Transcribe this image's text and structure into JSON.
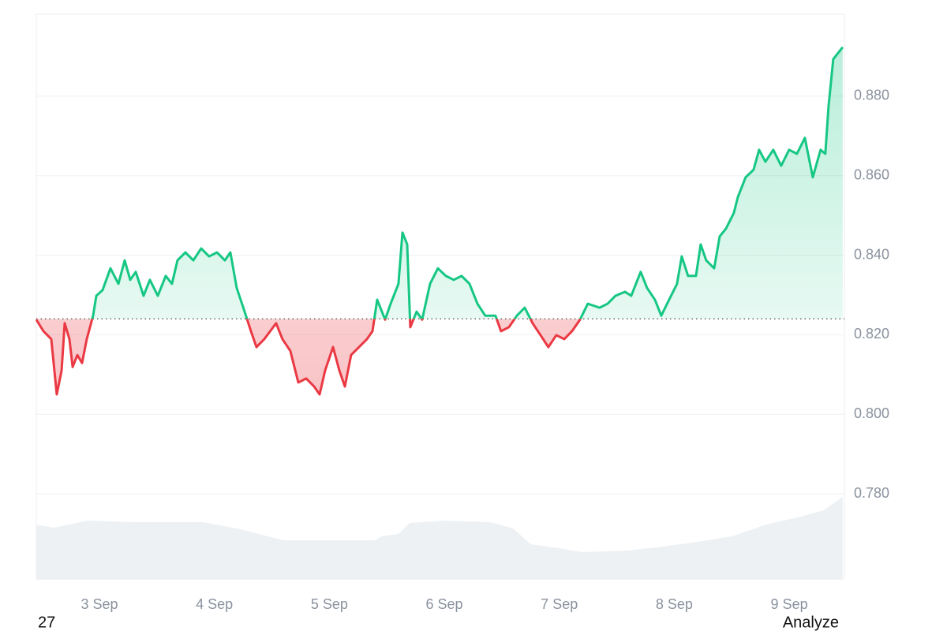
{
  "chart_data": {
    "type": "line",
    "x": [
      2.451,
      2.513,
      2.581,
      2.629,
      2.671,
      2.698,
      2.739,
      2.767,
      2.808,
      2.849,
      2.89,
      2.945,
      2.973,
      3.027,
      3.096,
      3.165,
      3.22,
      3.268,
      3.316,
      3.384,
      3.439,
      3.508,
      3.577,
      3.631,
      3.679,
      3.748,
      3.817,
      3.885,
      3.954,
      4.023,
      4.091,
      4.139,
      4.194,
      4.263,
      4.318,
      4.366,
      4.434,
      4.537,
      4.592,
      4.661,
      4.73,
      4.798,
      4.867,
      4.915,
      4.963,
      5.032,
      5.087,
      5.135,
      5.189,
      5.258,
      5.327,
      5.375,
      5.416,
      5.485,
      5.533,
      5.601,
      5.636,
      5.677,
      5.704,
      5.759,
      5.807,
      5.876,
      5.944,
      6.013,
      6.082,
      6.15,
      6.219,
      6.288,
      6.356,
      6.445,
      6.493,
      6.562,
      6.631,
      6.699,
      6.768,
      6.837,
      6.905,
      6.974,
      7.043,
      7.111,
      7.18,
      7.248,
      7.351,
      7.42,
      7.489,
      7.571,
      7.626,
      7.708,
      7.763,
      7.832,
      7.887,
      7.955,
      8.024,
      8.065,
      8.12,
      8.189,
      8.23,
      8.278,
      8.347,
      8.395,
      8.45,
      8.518,
      8.553,
      8.621,
      8.69,
      8.738,
      8.793,
      8.861,
      8.93,
      8.999,
      9.067,
      9.136,
      9.205,
      9.273,
      9.314,
      9.342,
      9.383,
      9.465
    ],
    "values": [
      0.8238,
      0.8209,
      0.8189,
      0.805,
      0.811,
      0.8229,
      0.8189,
      0.8119,
      0.8149,
      0.8129,
      0.8189,
      0.8248,
      0.8298,
      0.8312,
      0.8367,
      0.8328,
      0.8387,
      0.8338,
      0.8358,
      0.8298,
      0.8338,
      0.8298,
      0.8348,
      0.8328,
      0.8387,
      0.8407,
      0.8387,
      0.8417,
      0.8397,
      0.8407,
      0.8387,
      0.8407,
      0.8318,
      0.8258,
      0.8209,
      0.8169,
      0.8189,
      0.8229,
      0.8189,
      0.8159,
      0.808,
      0.809,
      0.807,
      0.805,
      0.811,
      0.8169,
      0.811,
      0.807,
      0.8149,
      0.8169,
      0.8189,
      0.8209,
      0.8288,
      0.8238,
      0.8278,
      0.8328,
      0.8457,
      0.8427,
      0.8219,
      0.8258,
      0.8238,
      0.8328,
      0.8367,
      0.8348,
      0.8338,
      0.8348,
      0.8328,
      0.8278,
      0.8248,
      0.8248,
      0.8209,
      0.8219,
      0.8248,
      0.8268,
      0.8229,
      0.8199,
      0.8169,
      0.8199,
      0.8189,
      0.8209,
      0.8238,
      0.8278,
      0.8268,
      0.8278,
      0.8298,
      0.8308,
      0.8298,
      0.8358,
      0.8318,
      0.8288,
      0.8248,
      0.8288,
      0.8328,
      0.8397,
      0.8348,
      0.8348,
      0.8427,
      0.8387,
      0.8367,
      0.8447,
      0.8467,
      0.8506,
      0.8546,
      0.8596,
      0.8615,
      0.8665,
      0.8635,
      0.8665,
      0.8625,
      0.8665,
      0.8655,
      0.8695,
      0.8596,
      0.8665,
      0.8655,
      0.8774,
      0.8893,
      0.8923
    ],
    "baseline": 0.824,
    "up_color": "#16c784",
    "down_color": "#ea3943",
    "volume": {
      "color": "#eef1f4",
      "x": [
        2.451,
        2.6,
        2.9,
        3.3,
        3.9,
        4.2,
        4.6,
        5.0,
        5.4,
        5.45,
        5.6,
        5.7,
        6.0,
        6.4,
        6.6,
        6.75,
        7.0,
        7.2,
        7.6,
        7.9,
        8.2,
        8.5,
        8.8,
        9.1,
        9.3,
        9.465
      ],
      "values": [
        70,
        66,
        75,
        73,
        73,
        65,
        50,
        50,
        50,
        55,
        58,
        72,
        75,
        73,
        65,
        45,
        40,
        35,
        37,
        42,
        48,
        55,
        70,
        80,
        88,
        105
      ]
    },
    "xlim": [
      2.451,
      9.48
    ],
    "xticks": [
      {
        "value": 3,
        "label": "3 Sep"
      },
      {
        "value": 4,
        "label": "4 Sep"
      },
      {
        "value": 5,
        "label": "5 Sep"
      },
      {
        "value": 6,
        "label": "6 Sep"
      },
      {
        "value": 7,
        "label": "7 Sep"
      },
      {
        "value": 8,
        "label": "8 Sep"
      },
      {
        "value": 9,
        "label": "9 Sep"
      }
    ],
    "ylim": [
      0.7584,
      0.9006
    ],
    "yticks": [
      {
        "value": 0.78,
        "label": "0.780"
      },
      {
        "value": 0.8,
        "label": "0.800"
      },
      {
        "value": 0.82,
        "label": "0.820"
      },
      {
        "value": 0.84,
        "label": "0.840"
      },
      {
        "value": 0.86,
        "label": "0.860"
      },
      {
        "value": 0.88,
        "label": "0.880"
      }
    ],
    "grid": true
  },
  "footer": {
    "left": "27",
    "right": "Analyze"
  }
}
